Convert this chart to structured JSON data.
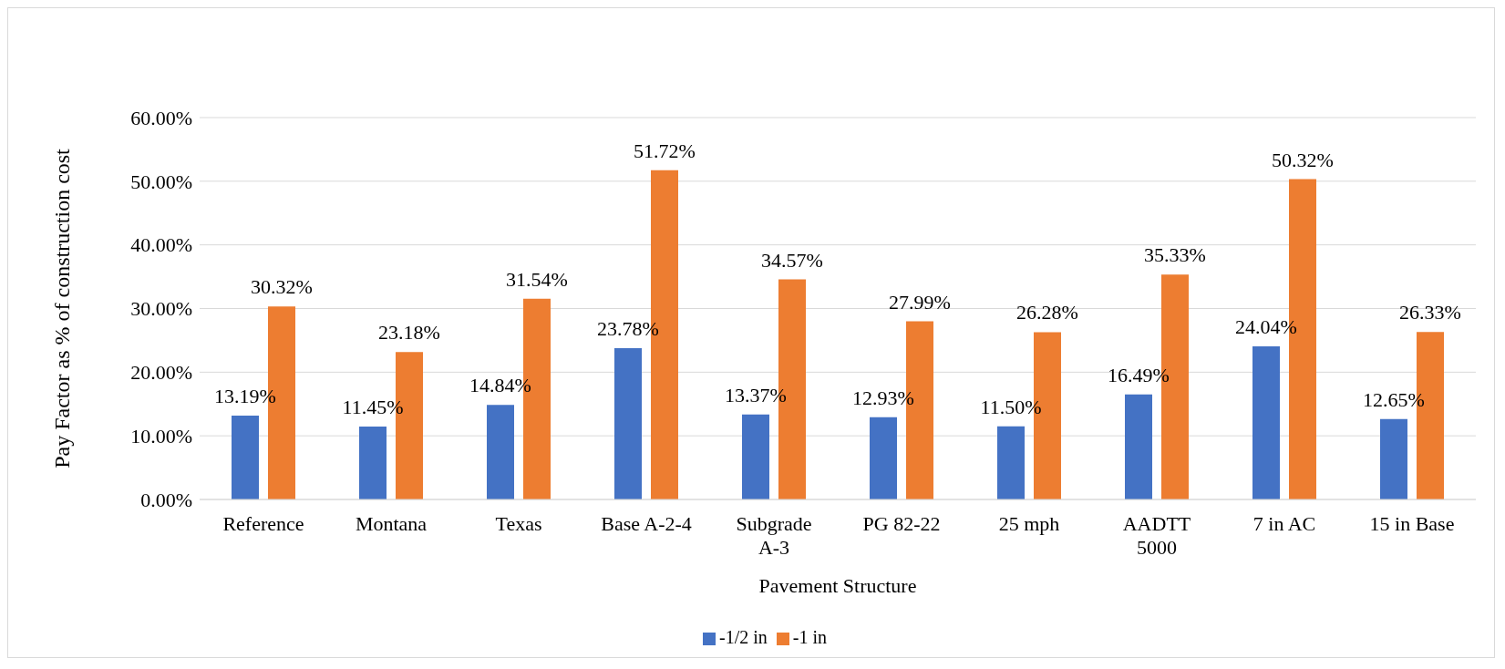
{
  "chart_data": {
    "type": "bar",
    "xlabel": "Pavement Structure",
    "ylabel": "Pay Factor as % of construction cost",
    "categories": [
      "Reference",
      "Montana",
      "Texas",
      "Base A-2-4",
      "Subgrade A-3",
      "PG 82-22",
      "25 mph",
      "AADTT 5000",
      "7 in AC",
      "15 in Base"
    ],
    "series": [
      {
        "name": "-1/2 in",
        "color": "#4472c4",
        "values": [
          13.19,
          11.45,
          14.84,
          23.78,
          13.37,
          12.93,
          11.5,
          16.49,
          24.04,
          12.65
        ],
        "value_labels": [
          "13.19%",
          "11.45%",
          "14.84%",
          "23.78%",
          "13.37%",
          "12.93%",
          "11.50%",
          "16.49%",
          "24.04%",
          "12.65%"
        ]
      },
      {
        "name": "-1 in",
        "color": "#ed7d31",
        "values": [
          30.32,
          23.18,
          31.54,
          51.72,
          34.57,
          27.99,
          26.28,
          35.33,
          50.32,
          26.33
        ],
        "value_labels": [
          "30.32%",
          "23.18%",
          "31.54%",
          "51.72%",
          "34.57%",
          "27.99%",
          "26.28%",
          "35.33%",
          "50.32%",
          "26.33%"
        ]
      }
    ],
    "ylim": [
      0,
      60
    ],
    "yticks": [
      {
        "value": 0,
        "label": "0.00%"
      },
      {
        "value": 10,
        "label": "10.00%"
      },
      {
        "value": 20,
        "label": "20.00%"
      },
      {
        "value": 30,
        "label": "30.00%"
      },
      {
        "value": 40,
        "label": "40.00%"
      },
      {
        "value": 50,
        "label": "50.00%"
      },
      {
        "value": 60,
        "label": "60.00%"
      }
    ],
    "grid": "y",
    "legend": "bottom"
  }
}
